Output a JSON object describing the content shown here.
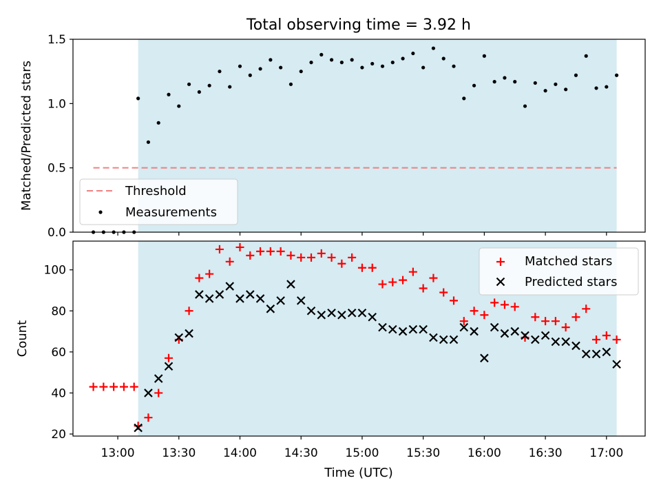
{
  "title": "Total observing time = 3.92 h",
  "colors": {
    "observing_span": "#add8e6",
    "threshold": "#f08080",
    "measurements": "#000000",
    "matched": "#ff0000",
    "predicted": "#000000"
  },
  "chart_data": [
    {
      "type": "scatter",
      "ylabel": "Matched/Predicted stars",
      "ylim": [
        0,
        1.5
      ],
      "yticks": [
        0,
        0.5,
        1.0,
        1.5
      ],
      "ytick_labels": [
        "0.0",
        "0.5",
        "1.0",
        "1.5"
      ],
      "x_range": [
        "12:38",
        "17:19"
      ],
      "shaded_span": [
        "13:10",
        "17:05"
      ],
      "legend": {
        "placement": "lower-left",
        "entries": [
          "Threshold",
          "Measurements"
        ]
      },
      "threshold": {
        "name": "Threshold",
        "y": 0.5,
        "x": [
          "12:48",
          "17:05"
        ]
      },
      "series": [
        {
          "name": "Measurements",
          "points": [
            [
              "12:48",
              0.0
            ],
            [
              "12:53",
              0.0
            ],
            [
              "12:58",
              0.0
            ],
            [
              "13:03",
              0.0
            ],
            [
              "13:08",
              0.0
            ],
            [
              "13:10",
              1.04
            ],
            [
              "13:15",
              0.7
            ],
            [
              "13:20",
              0.85
            ],
            [
              "13:25",
              1.07
            ],
            [
              "13:30",
              0.98
            ],
            [
              "13:35",
              1.15
            ],
            [
              "13:40",
              1.09
            ],
            [
              "13:45",
              1.14
            ],
            [
              "13:50",
              1.25
            ],
            [
              "13:55",
              1.13
            ],
            [
              "14:00",
              1.29
            ],
            [
              "14:05",
              1.22
            ],
            [
              "14:10",
              1.27
            ],
            [
              "14:15",
              1.34
            ],
            [
              "14:20",
              1.28
            ],
            [
              "14:25",
              1.15
            ],
            [
              "14:30",
              1.25
            ],
            [
              "14:35",
              1.32
            ],
            [
              "14:40",
              1.38
            ],
            [
              "14:45",
              1.34
            ],
            [
              "14:50",
              1.32
            ],
            [
              "14:55",
              1.34
            ],
            [
              "15:00",
              1.28
            ],
            [
              "15:05",
              1.31
            ],
            [
              "15:10",
              1.29
            ],
            [
              "15:15",
              1.32
            ],
            [
              "15:20",
              1.35
            ],
            [
              "15:25",
              1.39
            ],
            [
              "15:30",
              1.28
            ],
            [
              "15:35",
              1.43
            ],
            [
              "15:40",
              1.35
            ],
            [
              "15:45",
              1.29
            ],
            [
              "15:50",
              1.04
            ],
            [
              "15:55",
              1.14
            ],
            [
              "16:00",
              1.37
            ],
            [
              "16:05",
              1.17
            ],
            [
              "16:10",
              1.2
            ],
            [
              "16:15",
              1.17
            ],
            [
              "16:20",
              0.98
            ],
            [
              "16:25",
              1.16
            ],
            [
              "16:30",
              1.1
            ],
            [
              "16:35",
              1.15
            ],
            [
              "16:40",
              1.11
            ],
            [
              "16:45",
              1.22
            ],
            [
              "16:50",
              1.37
            ],
            [
              "16:55",
              1.12
            ],
            [
              "17:00",
              1.13
            ],
            [
              "17:05",
              1.22
            ]
          ]
        }
      ]
    },
    {
      "type": "scatter",
      "xlabel": "Time (UTC)",
      "ylabel": "Count",
      "ylim": [
        19,
        114
      ],
      "yticks": [
        20,
        40,
        60,
        80,
        100
      ],
      "xticks": [
        "13:00",
        "13:30",
        "14:00",
        "14:30",
        "15:00",
        "15:30",
        "16:00",
        "16:30",
        "17:00"
      ],
      "x_range": [
        "12:38",
        "17:19"
      ],
      "shaded_span": [
        "13:10",
        "17:05"
      ],
      "legend": {
        "placement": "upper-right",
        "entries": [
          "Matched stars",
          "Predicted stars"
        ]
      },
      "series": [
        {
          "name": "Matched stars",
          "marker": "plus",
          "points": [
            [
              "12:48",
              43
            ],
            [
              "12:53",
              43
            ],
            [
              "12:58",
              43
            ],
            [
              "13:03",
              43
            ],
            [
              "13:08",
              43
            ],
            [
              "13:10",
              24
            ],
            [
              "13:15",
              28
            ],
            [
              "13:20",
              40
            ],
            [
              "13:25",
              57
            ],
            [
              "13:30",
              66
            ],
            [
              "13:35",
              80
            ],
            [
              "13:40",
              96
            ],
            [
              "13:45",
              98
            ],
            [
              "13:50",
              110
            ],
            [
              "13:55",
              104
            ],
            [
              "14:00",
              111
            ],
            [
              "14:05",
              107
            ],
            [
              "14:10",
              109
            ],
            [
              "14:15",
              109
            ],
            [
              "14:20",
              109
            ],
            [
              "14:25",
              107
            ],
            [
              "14:30",
              106
            ],
            [
              "14:35",
              106
            ],
            [
              "14:40",
              108
            ],
            [
              "14:45",
              106
            ],
            [
              "14:50",
              103
            ],
            [
              "14:55",
              106
            ],
            [
              "15:00",
              101
            ],
            [
              "15:05",
              101
            ],
            [
              "15:10",
              93
            ],
            [
              "15:15",
              94
            ],
            [
              "15:20",
              95
            ],
            [
              "15:25",
              99
            ],
            [
              "15:30",
              91
            ],
            [
              "15:35",
              96
            ],
            [
              "15:40",
              89
            ],
            [
              "15:45",
              85
            ],
            [
              "15:50",
              75
            ],
            [
              "15:55",
              80
            ],
            [
              "16:00",
              78
            ],
            [
              "16:05",
              84
            ],
            [
              "16:10",
              83
            ],
            [
              "16:15",
              82
            ],
            [
              "16:20",
              67
            ],
            [
              "16:25",
              77
            ],
            [
              "16:30",
              75
            ],
            [
              "16:35",
              75
            ],
            [
              "16:40",
              72
            ],
            [
              "16:45",
              77
            ],
            [
              "16:50",
              81
            ],
            [
              "16:55",
              66
            ],
            [
              "17:00",
              68
            ],
            [
              "17:05",
              66
            ]
          ]
        },
        {
          "name": "Predicted stars",
          "marker": "x",
          "points": [
            [
              "13:10",
              23
            ],
            [
              "13:15",
              40
            ],
            [
              "13:20",
              47
            ],
            [
              "13:25",
              53
            ],
            [
              "13:30",
              67
            ],
            [
              "13:35",
              69
            ],
            [
              "13:40",
              88
            ],
            [
              "13:45",
              86
            ],
            [
              "13:50",
              88
            ],
            [
              "13:55",
              92
            ],
            [
              "14:00",
              86
            ],
            [
              "14:05",
              88
            ],
            [
              "14:10",
              86
            ],
            [
              "14:15",
              81
            ],
            [
              "14:20",
              85
            ],
            [
              "14:25",
              93
            ],
            [
              "14:30",
              85
            ],
            [
              "14:35",
              80
            ],
            [
              "14:40",
              78
            ],
            [
              "14:45",
              79
            ],
            [
              "14:50",
              78
            ],
            [
              "14:55",
              79
            ],
            [
              "15:00",
              79
            ],
            [
              "15:05",
              77
            ],
            [
              "15:10",
              72
            ],
            [
              "15:15",
              71
            ],
            [
              "15:20",
              70
            ],
            [
              "15:25",
              71
            ],
            [
              "15:30",
              71
            ],
            [
              "15:35",
              67
            ],
            [
              "15:40",
              66
            ],
            [
              "15:45",
              66
            ],
            [
              "15:50",
              72
            ],
            [
              "15:55",
              70
            ],
            [
              "16:00",
              57
            ],
            [
              "16:05",
              72
            ],
            [
              "16:10",
              69
            ],
            [
              "16:15",
              70
            ],
            [
              "16:20",
              68
            ],
            [
              "16:25",
              66
            ],
            [
              "16:30",
              68
            ],
            [
              "16:35",
              65
            ],
            [
              "16:40",
              65
            ],
            [
              "16:45",
              63
            ],
            [
              "16:50",
              59
            ],
            [
              "16:55",
              59
            ],
            [
              "17:00",
              60
            ],
            [
              "17:05",
              54
            ]
          ]
        }
      ]
    }
  ]
}
